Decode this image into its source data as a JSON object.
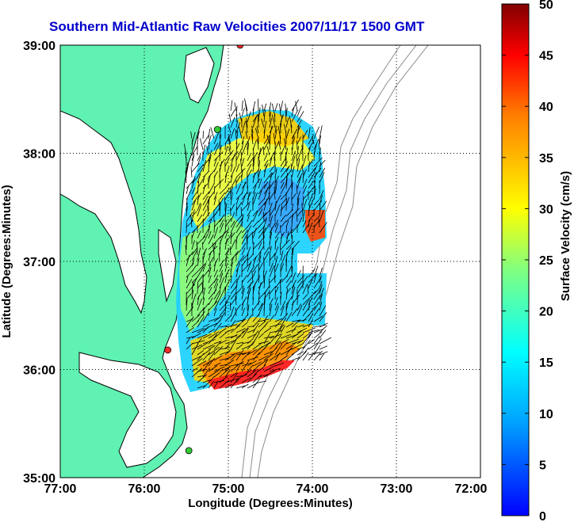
{
  "title": "Southern Mid-Atlantic Raw Velocities 2007/11/17 1500 GMT",
  "x_axis": {
    "label": "Longitude (Degrees:Minutes)",
    "ticks": [
      "77:00",
      "76:00",
      "75:00",
      "74:00",
      "73:00",
      "72:00"
    ],
    "range": [
      -77,
      -72
    ]
  },
  "y_axis": {
    "label": "Latitude (Degrees:Minutes)",
    "ticks": [
      "39:00",
      "38:00",
      "37:00",
      "36:00",
      "35:00"
    ],
    "range": [
      35,
      39
    ]
  },
  "colorbar": {
    "label": "Surface Velocity (cm/s)",
    "ticks": [
      "50",
      "45",
      "40",
      "35",
      "30",
      "25",
      "20",
      "15",
      "10",
      "5",
      "0"
    ],
    "range": [
      0,
      50
    ],
    "colormap": "jet"
  },
  "colors": {
    "land": "#5ff2b2",
    "water": "#ffffff",
    "coastline": "#000000",
    "bathymetry": "#8c8c8c",
    "gridline": "#000000",
    "title": "#0000cc",
    "station_red": "#ff2a2a",
    "station_green": "#33cc33"
  },
  "grid": "dotted",
  "stations": [
    {
      "color": "red",
      "lon": -74.86,
      "lat": 39.0
    },
    {
      "color": "green",
      "lon": -75.13,
      "lat": 38.22
    },
    {
      "color": "red",
      "lon": -75.72,
      "lat": 36.18
    },
    {
      "color": "green",
      "lon": -75.47,
      "lat": 35.25
    }
  ]
}
